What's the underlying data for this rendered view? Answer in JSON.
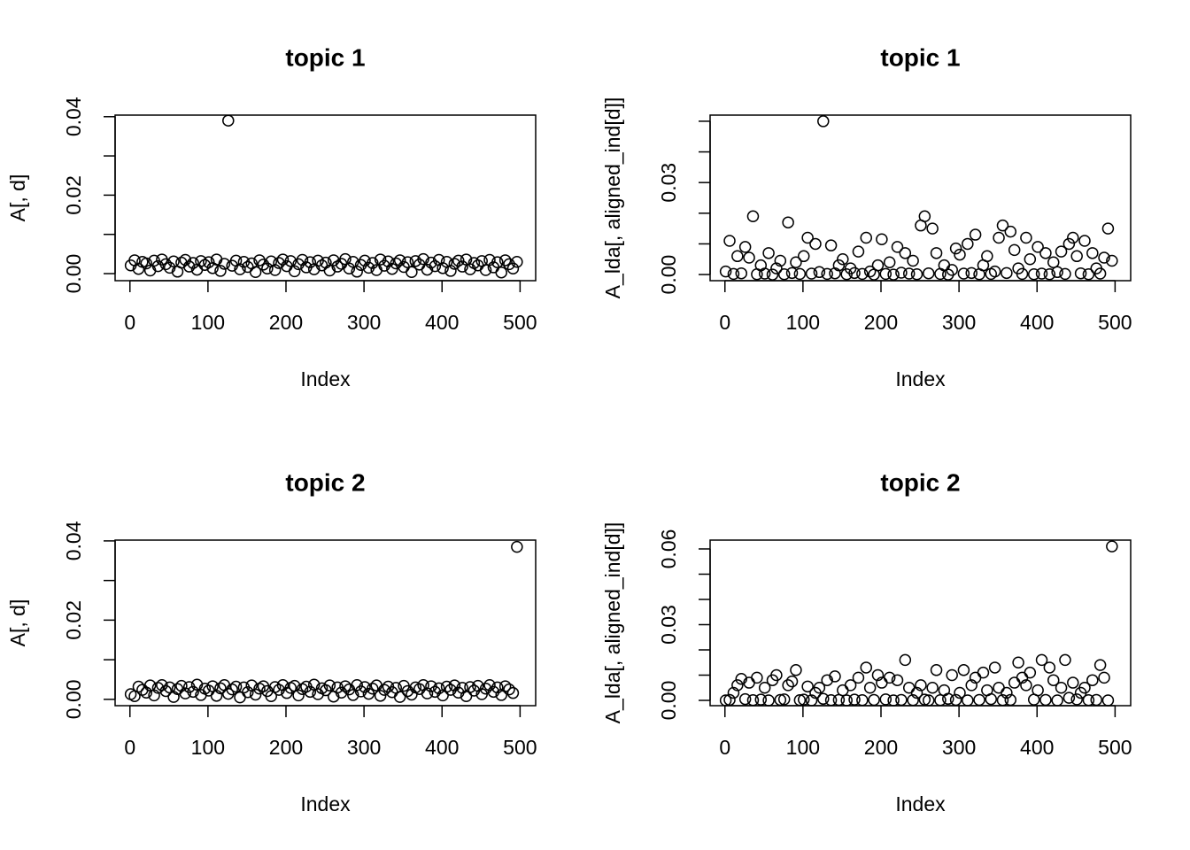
{
  "chart_data": [
    {
      "type": "scatter",
      "title": "topic 1",
      "xlabel": "Index",
      "ylabel": "A[, d]",
      "xlim": [
        -19,
        520
      ],
      "ylim": [
        -0.0018,
        0.0404
      ],
      "xticks": [
        0,
        100,
        200,
        300,
        400,
        500
      ],
      "yticks": [
        {
          "value": 0,
          "label": "0.00"
        },
        0.02,
        0.04
      ],
      "yminorticks": [
        0.01,
        0.03
      ],
      "x": [
        1,
        6,
        11,
        16,
        21,
        26,
        31,
        36,
        41,
        46,
        51,
        56,
        61,
        66,
        71,
        76,
        81,
        86,
        91,
        96,
        101,
        106,
        111,
        116,
        121,
        126,
        131,
        136,
        141,
        146,
        151,
        156,
        161,
        166,
        171,
        176,
        181,
        186,
        191,
        196,
        201,
        206,
        211,
        216,
        221,
        226,
        231,
        236,
        241,
        246,
        251,
        256,
        261,
        266,
        271,
        276,
        281,
        286,
        291,
        296,
        301,
        306,
        311,
        316,
        321,
        326,
        331,
        336,
        341,
        346,
        351,
        356,
        361,
        366,
        371,
        376,
        381,
        386,
        391,
        396,
        401,
        406,
        411,
        416,
        421,
        426,
        431,
        436,
        441,
        446,
        451,
        456,
        461,
        466,
        471,
        476,
        481,
        486,
        491,
        496
      ],
      "values": [
        0.0021,
        0.0034,
        0.0012,
        0.003,
        0.0026,
        0.0008,
        0.0033,
        0.0019,
        0.0036,
        0.0024,
        0.0015,
        0.0031,
        0.0005,
        0.0028,
        0.0035,
        0.0018,
        0.0027,
        0.001,
        0.0032,
        0.0022,
        0.0029,
        0.0014,
        0.0036,
        0.0007,
        0.0025,
        0.039,
        0.002,
        0.0033,
        0.0011,
        0.003,
        0.0017,
        0.0026,
        0.0004,
        0.0034,
        0.0023,
        0.0013,
        0.0031,
        0.0009,
        0.0027,
        0.0036,
        0.0019,
        0.0032,
        0.0006,
        0.0024,
        0.0035,
        0.0016,
        0.0029,
        0.0011,
        0.0033,
        0.0021,
        0.0028,
        0.0008,
        0.0034,
        0.0018,
        0.0025,
        0.0037,
        0.0013,
        0.003,
        0.0005,
        0.0022,
        0.0033,
        0.0015,
        0.0027,
        0.0009,
        0.0036,
        0.002,
        0.0031,
        0.0012,
        0.0026,
        0.0034,
        0.0017,
        0.0029,
        0.0004,
        0.0032,
        0.0023,
        0.0037,
        0.001,
        0.0028,
        0.0019,
        0.0035,
        0.0014,
        0.003,
        0.0007,
        0.0025,
        0.0033,
        0.0018,
        0.0036,
        0.0011,
        0.0027,
        0.0021,
        0.0032,
        0.0009,
        0.0035,
        0.0016,
        0.0029,
        0.0003,
        0.0034,
        0.0024,
        0.0013,
        0.003
      ]
    },
    {
      "type": "scatter",
      "title": "topic 1",
      "xlabel": "Index",
      "ylabel": "A_lda[, aligned_ind[d]]",
      "xlim": [
        -19,
        520
      ],
      "ylim": [
        -0.002,
        0.052
      ],
      "xticks": [
        0,
        100,
        200,
        300,
        400,
        500
      ],
      "yticks": [
        {
          "value": 0,
          "label": "0.00"
        },
        0.03
      ],
      "yminorticks": [
        0.01,
        0.02,
        0.04,
        0.05
      ],
      "x": [
        1,
        6,
        11,
        16,
        21,
        26,
        31,
        36,
        41,
        46,
        51,
        56,
        61,
        66,
        71,
        76,
        81,
        86,
        91,
        96,
        101,
        106,
        111,
        116,
        121,
        126,
        131,
        136,
        141,
        146,
        151,
        156,
        161,
        166,
        171,
        176,
        181,
        186,
        191,
        196,
        201,
        206,
        211,
        216,
        221,
        226,
        231,
        236,
        241,
        246,
        251,
        256,
        261,
        266,
        271,
        276,
        281,
        286,
        291,
        296,
        301,
        306,
        311,
        316,
        321,
        326,
        331,
        336,
        341,
        346,
        351,
        356,
        361,
        366,
        371,
        376,
        381,
        386,
        391,
        396,
        401,
        406,
        411,
        416,
        421,
        426,
        431,
        436,
        441,
        446,
        451,
        456,
        461,
        466,
        471,
        476,
        481,
        486,
        491,
        496
      ],
      "values": [
        0.001,
        0.011,
        0.0002,
        0.006,
        0.0004,
        0.009,
        0.0055,
        0.019,
        0.0001,
        0.003,
        0.0003,
        0.007,
        0.0,
        0.002,
        0.0045,
        0.0001,
        0.017,
        0.0005,
        0.004,
        0.0002,
        0.006,
        0.012,
        0.0003,
        0.01,
        0.0008,
        0.05,
        0.0002,
        0.0095,
        0.0004,
        0.003,
        0.005,
        0.0001,
        0.002,
        0.0005,
        0.0075,
        0.0002,
        0.012,
        0.001,
        0.0,
        0.003,
        0.0115,
        0.0002,
        0.004,
        0.0,
        0.009,
        0.0006,
        0.007,
        0.0003,
        0.0045,
        0.0001,
        0.016,
        0.019,
        0.0004,
        0.015,
        0.007,
        0.0002,
        0.003,
        0.0,
        0.0015,
        0.0085,
        0.0065,
        0.0003,
        0.01,
        0.0005,
        0.013,
        0.0001,
        0.003,
        0.006,
        0.0002,
        0.001,
        0.012,
        0.016,
        0.0005,
        0.014,
        0.008,
        0.002,
        0.0002,
        0.012,
        0.005,
        0.0001,
        0.009,
        0.0003,
        0.007,
        0.0001,
        0.004,
        0.0008,
        0.0075,
        0.0002,
        0.01,
        0.012,
        0.006,
        0.0004,
        0.011,
        0.0001,
        0.007,
        0.002,
        0.0003,
        0.0055,
        0.015,
        0.0045
      ]
    },
    {
      "type": "scatter",
      "title": "topic 2",
      "xlabel": "Index",
      "ylabel": "A[, d]",
      "xlim": [
        -19,
        520
      ],
      "ylim": [
        -0.0016,
        0.0402
      ],
      "xticks": [
        0,
        100,
        200,
        300,
        400,
        500
      ],
      "yticks": [
        {
          "value": 0,
          "label": "0.00"
        },
        0.02,
        0.04
      ],
      "yminorticks": [
        0.01,
        0.03
      ],
      "x": [
        1,
        6,
        11,
        16,
        21,
        26,
        31,
        36,
        41,
        46,
        51,
        56,
        61,
        66,
        71,
        76,
        81,
        86,
        91,
        96,
        101,
        106,
        111,
        116,
        121,
        126,
        131,
        136,
        141,
        146,
        151,
        156,
        161,
        166,
        171,
        176,
        181,
        186,
        191,
        196,
        201,
        206,
        211,
        216,
        221,
        226,
        231,
        236,
        241,
        246,
        251,
        256,
        261,
        266,
        271,
        276,
        281,
        286,
        291,
        296,
        301,
        306,
        311,
        316,
        321,
        326,
        331,
        336,
        341,
        346,
        351,
        356,
        361,
        366,
        371,
        376,
        381,
        386,
        391,
        396,
        401,
        406,
        411,
        416,
        421,
        426,
        431,
        436,
        441,
        446,
        451,
        456,
        461,
        466,
        471,
        476,
        481,
        486,
        491,
        496
      ],
      "values": [
        0.0013,
        0.0008,
        0.0032,
        0.0024,
        0.0017,
        0.0035,
        0.001,
        0.0029,
        0.0036,
        0.0021,
        0.003,
        0.0006,
        0.0026,
        0.0034,
        0.0015,
        0.0031,
        0.0019,
        0.0037,
        0.0011,
        0.0027,
        0.0022,
        0.0033,
        0.0009,
        0.0028,
        0.0036,
        0.0014,
        0.0025,
        0.0032,
        0.0005,
        0.003,
        0.0018,
        0.0035,
        0.0012,
        0.0027,
        0.0033,
        0.0021,
        0.0008,
        0.0031,
        0.0024,
        0.0036,
        0.0016,
        0.0029,
        0.0034,
        0.001,
        0.0026,
        0.0032,
        0.0019,
        0.0037,
        0.0013,
        0.0028,
        0.0023,
        0.0035,
        0.0007,
        0.003,
        0.0017,
        0.0033,
        0.0025,
        0.0011,
        0.0036,
        0.002,
        0.0031,
        0.0014,
        0.0027,
        0.0035,
        0.0009,
        0.0024,
        0.0032,
        0.0018,
        0.0029,
        0.0006,
        0.0034,
        0.0021,
        0.0012,
        0.003,
        0.0026,
        0.0036,
        0.0015,
        0.0033,
        0.0019,
        0.0028,
        0.001,
        0.0032,
        0.0024,
        0.0035,
        0.0017,
        0.0029,
        0.0008,
        0.0031,
        0.0022,
        0.0034,
        0.0013,
        0.0027,
        0.0036,
        0.0019,
        0.003,
        0.0011,
        0.0033,
        0.0025,
        0.0016,
        0.0385
      ]
    },
    {
      "type": "scatter",
      "title": "topic 2",
      "xlabel": "Index",
      "ylabel": "A_lda[, aligned_ind[d]]",
      "xlim": [
        -19,
        520
      ],
      "ylim": [
        -0.0021,
        0.0635
      ],
      "xticks": [
        0,
        100,
        200,
        300,
        400,
        500
      ],
      "yticks": [
        {
          "value": 0,
          "label": "0.00"
        },
        0.03,
        0.06
      ],
      "yminorticks": [
        0.01,
        0.02,
        0.04,
        0.05
      ],
      "x": [
        1,
        6,
        11,
        16,
        21,
        26,
        31,
        36,
        41,
        46,
        51,
        56,
        61,
        66,
        71,
        76,
        81,
        86,
        91,
        96,
        101,
        106,
        111,
        116,
        121,
        126,
        131,
        136,
        141,
        146,
        151,
        156,
        161,
        166,
        171,
        176,
        181,
        186,
        191,
        196,
        201,
        206,
        211,
        216,
        221,
        226,
        231,
        236,
        241,
        246,
        251,
        256,
        261,
        266,
        271,
        276,
        281,
        286,
        291,
        296,
        301,
        306,
        311,
        316,
        321,
        326,
        331,
        336,
        341,
        346,
        351,
        356,
        361,
        366,
        371,
        376,
        381,
        386,
        391,
        396,
        401,
        406,
        411,
        416,
        421,
        426,
        431,
        436,
        441,
        446,
        451,
        456,
        461,
        466,
        471,
        476,
        481,
        486,
        491,
        496
      ],
      "values": [
        0.0,
        0.0002,
        0.003,
        0.006,
        0.0085,
        0.0005,
        0.007,
        0.0001,
        0.009,
        0.0003,
        0.005,
        0.0,
        0.008,
        0.01,
        0.0002,
        0.0004,
        0.006,
        0.0075,
        0.012,
        0.0001,
        0.0003,
        0.0055,
        0.0,
        0.003,
        0.005,
        0.0006,
        0.008,
        0.0001,
        0.0095,
        0.0002,
        0.004,
        0.0,
        0.006,
        0.0003,
        0.009,
        0.0001,
        0.013,
        0.005,
        0.0002,
        0.01,
        0.007,
        0.0004,
        0.009,
        0.0,
        0.008,
        0.0002,
        0.016,
        0.005,
        0.0001,
        0.003,
        0.006,
        0.0003,
        0.0,
        0.005,
        0.012,
        0.0001,
        0.004,
        0.0006,
        0.01,
        0.0002,
        0.003,
        0.012,
        0.0,
        0.006,
        0.009,
        0.0002,
        0.011,
        0.004,
        0.0005,
        0.013,
        0.005,
        0.0001,
        0.003,
        0.0002,
        0.007,
        0.015,
        0.009,
        0.006,
        0.011,
        0.0003,
        0.004,
        0.016,
        0.0002,
        0.013,
        0.008,
        0.0,
        0.005,
        0.016,
        0.001,
        0.007,
        0.0004,
        0.003,
        0.005,
        0.0001,
        0.008,
        0.0002,
        0.014,
        0.009,
        0.0,
        0.061
      ]
    }
  ]
}
